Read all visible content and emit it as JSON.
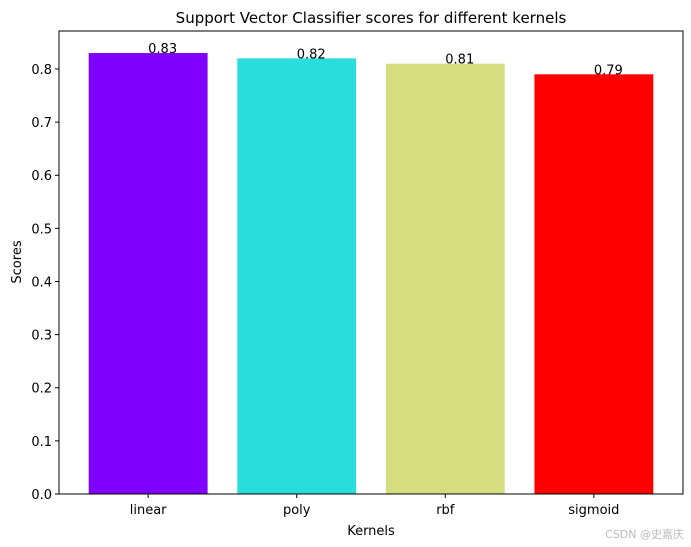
{
  "chart_data": {
    "type": "bar",
    "title": "Support Vector Classifier scores for different kernels",
    "xlabel": "Kernels",
    "ylabel": "Scores",
    "categories": [
      "linear",
      "poly",
      "rbf",
      "sigmoid"
    ],
    "values": [
      0.83,
      0.82,
      0.81,
      0.79
    ],
    "colors": [
      "#8000ff",
      "#2adddd",
      "#d4dd80",
      "#ff0000"
    ],
    "ylim": [
      0,
      0.8715
    ],
    "yticks": [
      {
        "value": 0,
        "label": "0.0"
      },
      0.1,
      0.2,
      0.3,
      0.4,
      0.5,
      0.6,
      0.7,
      0.8
    ],
    "watermark": "CSDN @史嘉庆"
  }
}
